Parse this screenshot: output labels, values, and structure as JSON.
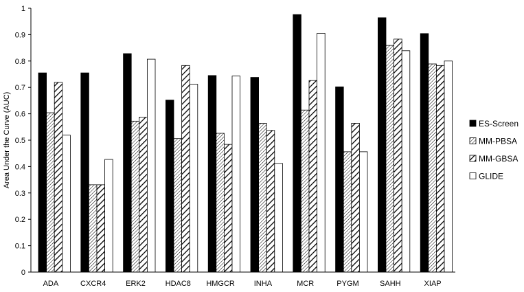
{
  "chart_data": {
    "type": "bar",
    "title": "",
    "xlabel": "",
    "ylabel": "Area Under the Curve (AUC)",
    "ylim": [
      0,
      1
    ],
    "yticks": [
      "0",
      "0.1",
      "0.2",
      "0.3",
      "0.4",
      "0.5",
      "0.6",
      "0.7",
      "0.8",
      "0.9",
      "1"
    ],
    "grid": false,
    "legend_position": "right",
    "categories": [
      "ADA",
      "CXCR4",
      "ERK2",
      "HDAC8",
      "HMGCR",
      "INHA",
      "MCR",
      "PYGM",
      "SAHH",
      "XIAP"
    ],
    "series": [
      {
        "name": "ES-Screen",
        "fill": "solid-black",
        "values": [
          0.755,
          0.755,
          0.828,
          0.652,
          0.745,
          0.738,
          0.976,
          0.702,
          0.964,
          0.904
        ]
      },
      {
        "name": "MM-PBSA",
        "fill": "dense-hatch",
        "values": [
          0.604,
          0.331,
          0.572,
          0.506,
          0.526,
          0.564,
          0.614,
          0.456,
          0.859,
          0.789
        ]
      },
      {
        "name": "MM-GBSA",
        "fill": "wide-hatch",
        "values": [
          0.719,
          0.331,
          0.587,
          0.783,
          0.484,
          0.537,
          0.726,
          0.564,
          0.883,
          0.783
        ]
      },
      {
        "name": "GLIDE",
        "fill": "white",
        "values": [
          0.519,
          0.427,
          0.807,
          0.712,
          0.743,
          0.412,
          0.905,
          0.456,
          0.839,
          0.8
        ]
      }
    ]
  },
  "colors": {
    "bar_dark": "#000000",
    "bar_light": "#ffffff",
    "axis": "#000000"
  }
}
